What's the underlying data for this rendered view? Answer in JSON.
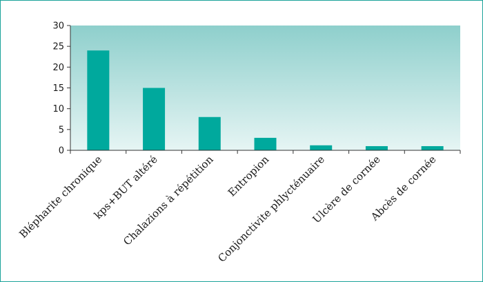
{
  "chart_data": {
    "type": "bar",
    "categories": [
      "Blépharite chronique",
      "kps+BUT altéré",
      "Chalazions à répétition",
      "Entropion",
      "Conjonctivite phlycténuaire",
      "Ulcère de cornée",
      "Abcès de cornée"
    ],
    "values": [
      24,
      15,
      8,
      3,
      1.2,
      1,
      1
    ],
    "ylim": [
      0,
      30
    ],
    "yticks": [
      "0",
      "5",
      "10",
      "15",
      "20",
      "25",
      "30"
    ],
    "grid": false,
    "colors": {
      "bar": "#00a99d",
      "plot_bg_top": "#8ecfcc",
      "plot_bg_bottom": "#e6f5f4",
      "frame": "#1aa39a",
      "axis": "#333333"
    }
  }
}
